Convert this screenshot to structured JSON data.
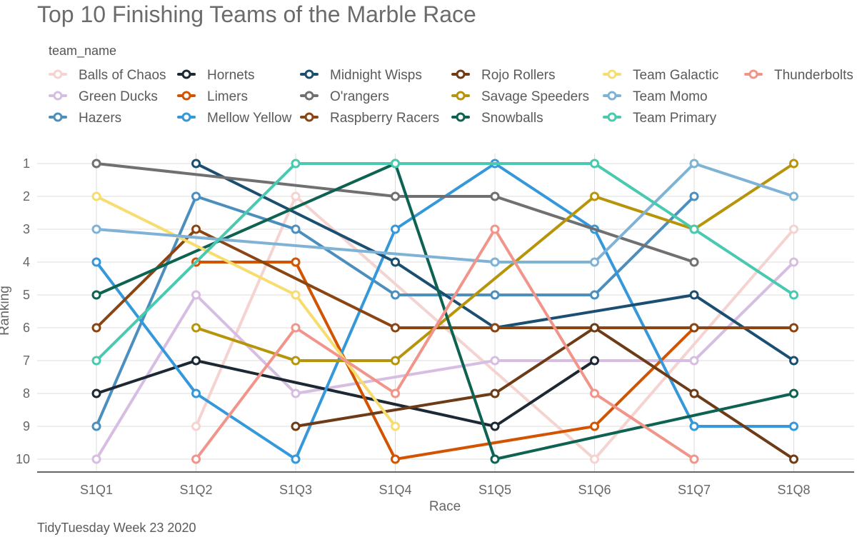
{
  "chart_data": {
    "type": "line",
    "title": "Top 10 Finishing Teams of the Marble Race",
    "xlabel": "Race",
    "ylabel": "Ranking",
    "caption": "TidyTuesday Week 23 2020",
    "legend_title": "team_name",
    "legend_position": "top",
    "y_reversed": true,
    "ylim": [
      1,
      10
    ],
    "grid": true,
    "x": [
      "S1Q1",
      "S1Q2",
      "S1Q3",
      "S1Q4",
      "S1Q5",
      "S1Q6",
      "S1Q7",
      "S1Q8"
    ],
    "y_ticks": [
      "1",
      "2",
      "3",
      "4",
      "5",
      "6",
      "7",
      "8",
      "9",
      "10"
    ],
    "series": [
      {
        "name": "Balls of Chaos",
        "color": "#f4d3d0",
        "values": [
          null,
          9,
          2,
          null,
          null,
          10,
          null,
          3
        ]
      },
      {
        "name": "Green Ducks",
        "color": "#d7bde2",
        "values": [
          10,
          5,
          8,
          null,
          7,
          7,
          7,
          4
        ]
      },
      {
        "name": "Hazers",
        "color": "#4b8fbf",
        "values": [
          9,
          2,
          3,
          5,
          5,
          5,
          2,
          null
        ]
      },
      {
        "name": "Hornets",
        "color": "#1c2833",
        "values": [
          8,
          7,
          null,
          null,
          9,
          7,
          null,
          null
        ]
      },
      {
        "name": "Limers",
        "color": "#d35400",
        "values": [
          null,
          4,
          4,
          10,
          null,
          9,
          6,
          null
        ]
      },
      {
        "name": "Mellow Yellow",
        "color": "#3498db",
        "values": [
          4,
          8,
          10,
          3,
          1,
          3,
          9,
          9
        ]
      },
      {
        "name": "Midnight Wisps",
        "color": "#1b4f72",
        "values": [
          null,
          1,
          null,
          4,
          6,
          null,
          5,
          7
        ]
      },
      {
        "name": "O'rangers",
        "color": "#707070",
        "values": [
          1,
          null,
          null,
          2,
          2,
          null,
          4,
          null
        ]
      },
      {
        "name": "Raspberry Racers",
        "color": "#8b4513",
        "values": [
          6,
          3,
          null,
          6,
          6,
          6,
          6,
          6
        ]
      },
      {
        "name": "Rojo Rollers",
        "color": "#6e3b17",
        "values": [
          null,
          null,
          9,
          null,
          8,
          6,
          8,
          10
        ]
      },
      {
        "name": "Savage Speeders",
        "color": "#b7950b",
        "values": [
          null,
          6,
          7,
          7,
          null,
          2,
          3,
          1
        ]
      },
      {
        "name": "Snowballs",
        "color": "#0e6251",
        "values": [
          5,
          null,
          null,
          1,
          10,
          null,
          null,
          8
        ]
      },
      {
        "name": "Team Galactic",
        "color": "#f7dc6f",
        "values": [
          2,
          null,
          5,
          9,
          null,
          null,
          null,
          null
        ]
      },
      {
        "name": "Team Momo",
        "color": "#7fb3d5",
        "values": [
          3,
          null,
          null,
          null,
          4,
          4,
          1,
          2
        ]
      },
      {
        "name": "Team Primary",
        "color": "#48c9b0",
        "values": [
          7,
          null,
          1,
          1,
          null,
          1,
          3,
          5
        ]
      },
      {
        "name": "Thunderbolts",
        "color": "#f1948a",
        "values": [
          null,
          10,
          6,
          8,
          3,
          8,
          10,
          null
        ]
      }
    ]
  }
}
